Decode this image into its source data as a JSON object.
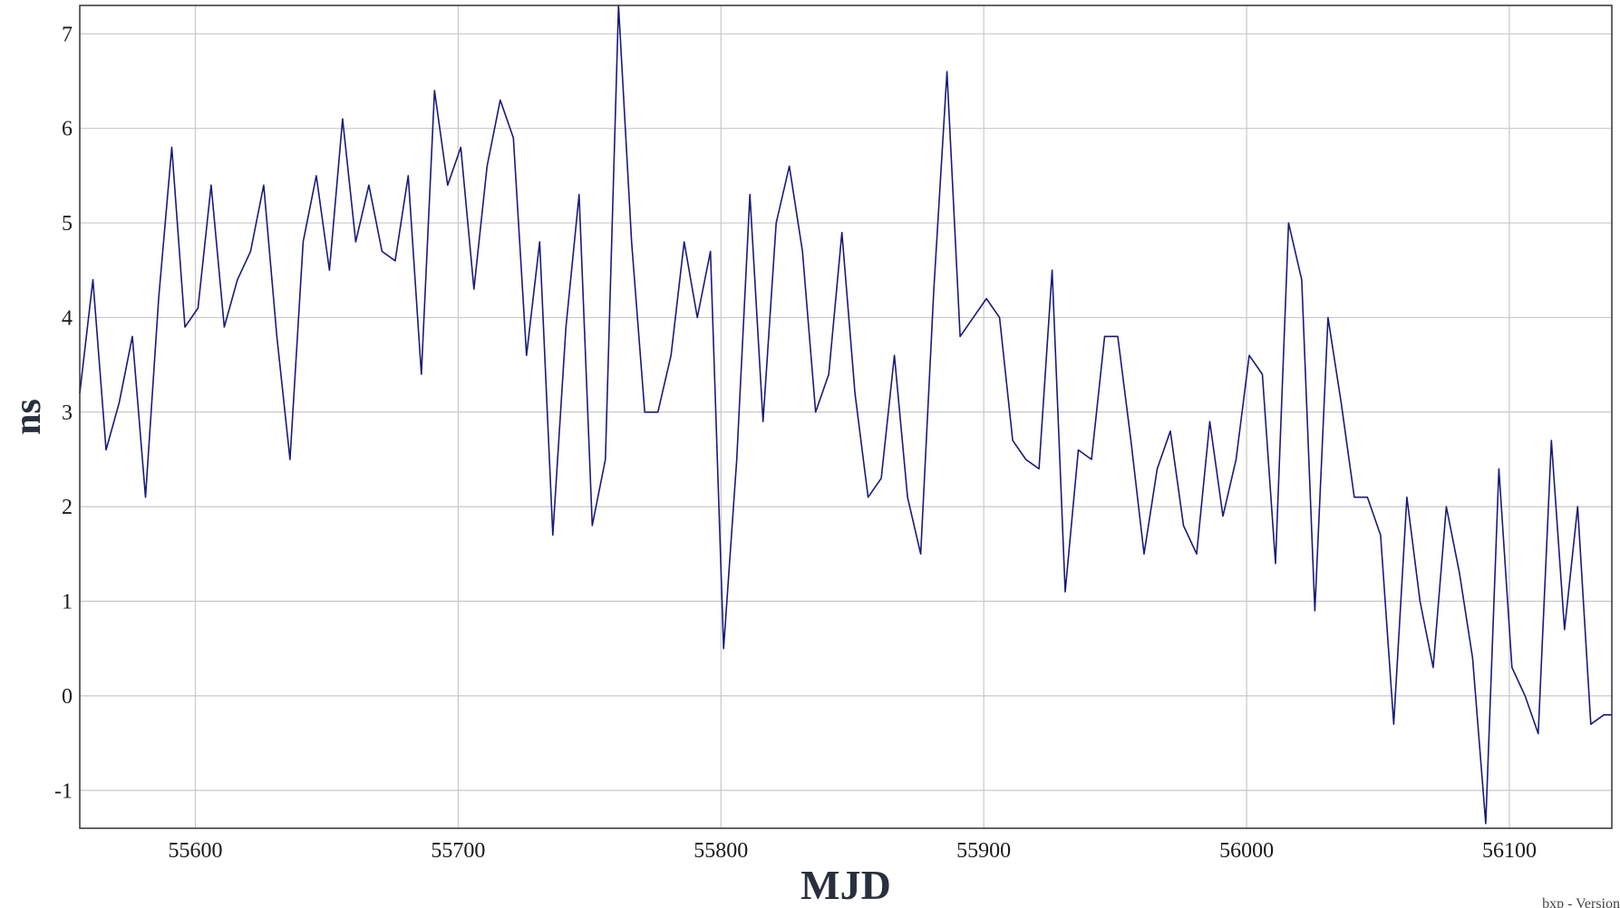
{
  "chart_data": {
    "type": "line",
    "title": "",
    "xlabel": "MJD",
    "ylabel": "ns",
    "xlim": [
      55556,
      56139
    ],
    "ylim": [
      -1.4,
      7.3
    ],
    "grid": true,
    "x_ticks": [
      55600,
      55700,
      55800,
      55900,
      56000,
      56100
    ],
    "y_ticks": [
      -1,
      0,
      1,
      2,
      3,
      4,
      5,
      6,
      7
    ],
    "line_color": "#1a1a7a",
    "series": [
      {
        "x": [
          55556,
          55561,
          55566,
          55571,
          55576,
          55581,
          55586,
          55591,
          55596,
          55601,
          55606,
          55611,
          55616,
          55621,
          55626,
          55631,
          55636,
          55641,
          55646,
          55651,
          55656,
          55661,
          55666,
          55671,
          55676,
          55681,
          55686,
          55691,
          55696,
          55701,
          55706,
          55711,
          55716,
          55721,
          55726,
          55731,
          55736,
          55741,
          55746,
          55751,
          55756,
          55761,
          55766,
          55771,
          55776,
          55781,
          55786,
          55791,
          55796,
          55801,
          55806,
          55811,
          55816,
          55821,
          55826,
          55831,
          55836,
          55841,
          55846,
          55851,
          55856,
          55861,
          55866,
          55871,
          55876,
          55881,
          55886,
          55891,
          55896,
          55901,
          55906,
          55911,
          55916,
          55921,
          55926,
          55931,
          55936,
          55941,
          55946,
          55951,
          55956,
          55961,
          55966,
          55971,
          55976,
          55981,
          55986,
          55991,
          55996,
          56001,
          56006,
          56011,
          56016,
          56021,
          56026,
          56031,
          56036,
          56041,
          56046,
          56051,
          56056,
          56061,
          56066,
          56071,
          56076,
          56081,
          56086,
          56091,
          56096,
          56101,
          56106,
          56111,
          56116,
          56121,
          56126,
          56131,
          56136,
          56139
        ],
        "y": [
          3.2,
          4.4,
          2.6,
          3.1,
          3.8,
          2.1,
          4.2,
          5.8,
          3.9,
          4.1,
          5.4,
          3.9,
          4.4,
          4.7,
          5.4,
          3.8,
          2.5,
          4.8,
          5.5,
          4.5,
          6.1,
          4.8,
          5.4,
          4.7,
          4.6,
          5.5,
          3.4,
          6.4,
          5.4,
          5.8,
          4.3,
          5.6,
          6.3,
          5.9,
          3.6,
          4.8,
          1.7,
          3.9,
          5.3,
          1.8,
          2.5,
          7.3,
          4.8,
          3.0,
          3.0,
          3.6,
          4.8,
          4.0,
          4.7,
          0.5,
          2.5,
          5.3,
          2.9,
          5.0,
          5.6,
          4.7,
          3.0,
          3.4,
          4.9,
          3.2,
          2.1,
          2.3,
          3.6,
          2.1,
          1.5,
          4.3,
          6.6,
          3.8,
          4.0,
          4.2,
          4.0,
          2.7,
          2.5,
          2.4,
          4.5,
          1.1,
          2.6,
          2.5,
          3.8,
          3.8,
          2.7,
          1.5,
          2.4,
          2.8,
          1.8,
          1.5,
          2.9,
          1.9,
          2.5,
          3.6,
          3.4,
          1.4,
          5.0,
          4.4,
          0.9,
          4.0,
          3.1,
          2.1,
          2.1,
          1.7,
          -0.3,
          2.1,
          1.0,
          0.3,
          2.0,
          1.3,
          0.4,
          -1.35,
          2.4,
          0.3,
          0.0,
          -0.4,
          2.7,
          0.7,
          2.0,
          -0.3,
          -0.2,
          -0.2
        ]
      }
    ]
  },
  "footer": {
    "text": "bxp - Version"
  }
}
